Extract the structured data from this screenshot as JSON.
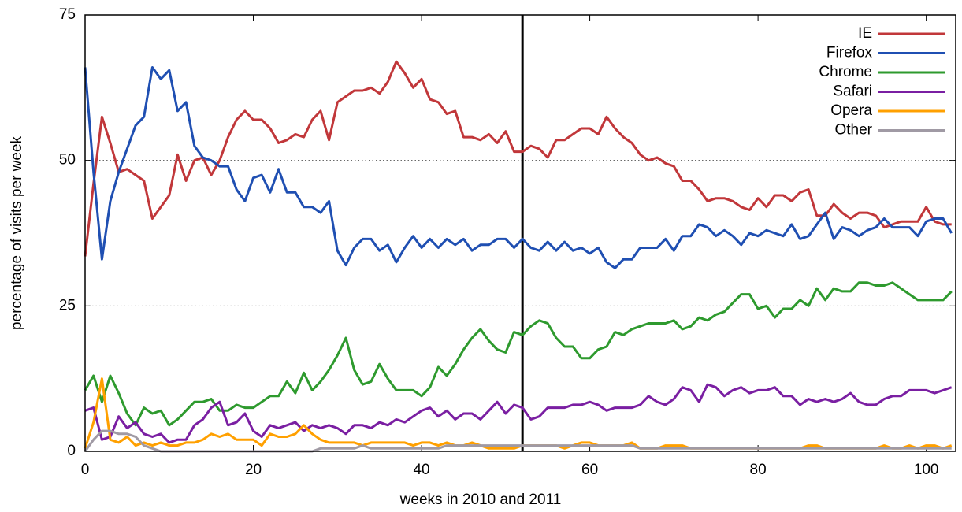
{
  "chart_data": {
    "type": "line",
    "xlabel": "weeks in 2010 and 2011",
    "ylabel": "percentage of visits per week",
    "xlim": [
      0,
      103.5
    ],
    "ylim": [
      0,
      75
    ],
    "xticks": [
      0,
      20,
      40,
      60,
      80,
      100
    ],
    "yticks": [
      0,
      25,
      50,
      75
    ],
    "grid": true,
    "legend": "top-right",
    "vline": 52,
    "x": [
      0,
      1,
      2,
      3,
      4,
      5,
      6,
      7,
      8,
      9,
      10,
      11,
      12,
      13,
      14,
      15,
      16,
      17,
      18,
      19,
      20,
      21,
      22,
      23,
      24,
      25,
      26,
      27,
      28,
      29,
      30,
      31,
      32,
      33,
      34,
      35,
      36,
      37,
      38,
      39,
      40,
      41,
      42,
      43,
      44,
      45,
      46,
      47,
      48,
      49,
      50,
      51,
      52,
      53,
      54,
      55,
      56,
      57,
      58,
      59,
      60,
      61,
      62,
      63,
      64,
      65,
      66,
      67,
      68,
      69,
      70,
      71,
      72,
      73,
      74,
      75,
      76,
      77,
      78,
      79,
      80,
      81,
      82,
      83,
      84,
      85,
      86,
      87,
      88,
      89,
      90,
      91,
      92,
      93,
      94,
      95,
      96,
      97,
      98,
      99,
      100,
      101,
      102,
      103
    ],
    "series": [
      {
        "name": "IE",
        "color": "#c1373a",
        "values": [
          33.5,
          46,
          57.5,
          53,
          48,
          48.5,
          47.5,
          46.5,
          40,
          42,
          44,
          51,
          46.5,
          50,
          50.5,
          47.5,
          50,
          54,
          57,
          58.5,
          57,
          57,
          55.5,
          53,
          53.5,
          54.5,
          54,
          57,
          58.5,
          53.5,
          60,
          61,
          62,
          62,
          62.5,
          61.5,
          63.5,
          67,
          65,
          62.5,
          64,
          60.5,
          60,
          58,
          58.5,
          54,
          54,
          53.5,
          54.5,
          53,
          55,
          51.5,
          51.5,
          52.5,
          52,
          50.5,
          53.5,
          53.5,
          54.5,
          55.5,
          55.5,
          54.5,
          57.5,
          55.5,
          54,
          53,
          51,
          50,
          50.5,
          49.5,
          49,
          46.5,
          46.5,
          45,
          43,
          43.5,
          43.5,
          43,
          42,
          41.5,
          43.5,
          42,
          44,
          44,
          43,
          44.5,
          45,
          40.5,
          40.5,
          42.5,
          41,
          40,
          41,
          41,
          40.5,
          38.5,
          39,
          39.5,
          39.5,
          39.5,
          42,
          39.5,
          39,
          39
        ]
      },
      {
        "name": "Firefox",
        "color": "#1f4fb2",
        "values": [
          66,
          48,
          33,
          43,
          48,
          52,
          56,
          57.5,
          66,
          64,
          65.5,
          58.5,
          60,
          52.5,
          50.5,
          50,
          49,
          49,
          45,
          43,
          47,
          47.5,
          44.5,
          48.5,
          44.5,
          44.5,
          42,
          42,
          41,
          43,
          34.5,
          32,
          35,
          36.5,
          36.5,
          34.5,
          35.5,
          32.5,
          35,
          37,
          35,
          36.5,
          35,
          36.5,
          35.5,
          36.5,
          34.5,
          35.5,
          35.5,
          36.5,
          36.5,
          35,
          36.5,
          35,
          34.5,
          36,
          34.5,
          36,
          34.5,
          35,
          34,
          35,
          32.5,
          31.5,
          33,
          33,
          35,
          35,
          35,
          36.5,
          34.5,
          37,
          37,
          39,
          38.5,
          37,
          38,
          37,
          35.5,
          37.5,
          37,
          38,
          37.5,
          37,
          39,
          36.5,
          37,
          39,
          41,
          36.5,
          38.5,
          38,
          37,
          38,
          38.5,
          40,
          38.5,
          38.5,
          38.5,
          37,
          39.5,
          40,
          40,
          37.5
        ]
      },
      {
        "name": "Chrome",
        "color": "#2e9a2e",
        "values": [
          10.5,
          13,
          8.5,
          13,
          10,
          6.5,
          4.5,
          7.5,
          6.5,
          7,
          4.5,
          5.5,
          7,
          8.5,
          8.5,
          9,
          7,
          7,
          8,
          7.5,
          7.5,
          8.5,
          9.5,
          9.5,
          12,
          10,
          13.5,
          10.5,
          12,
          14,
          16.5,
          19.5,
          14,
          11.5,
          12,
          15,
          12.5,
          10.5,
          10.5,
          10.5,
          9.5,
          11,
          14.5,
          13,
          15,
          17.5,
          19.5,
          21,
          19,
          17.5,
          17,
          20.5,
          20,
          21.5,
          22.5,
          22,
          19.5,
          18,
          18,
          16,
          16,
          17.5,
          18,
          20.5,
          20,
          21,
          21.5,
          22,
          22,
          22,
          22.5,
          21,
          21.5,
          23,
          22.5,
          23.5,
          24,
          25.5,
          27,
          27,
          24.5,
          25,
          23,
          24.5,
          24.5,
          26,
          25,
          28,
          26,
          28,
          27.5,
          27.5,
          29,
          29,
          28.5,
          28.5,
          29,
          28,
          27,
          26,
          26,
          26,
          26,
          27.5
        ]
      },
      {
        "name": "Safari",
        "color": "#7a1fa2",
        "values": [
          7,
          7.5,
          2,
          2.5,
          6,
          4,
          5,
          3,
          2.5,
          3,
          1.5,
          2,
          2,
          4.5,
          5.5,
          7.5,
          8.5,
          4.5,
          5,
          6.5,
          3.5,
          2.5,
          4.5,
          4,
          4.5,
          5,
          3.5,
          4.5,
          4,
          4.5,
          4,
          3,
          4.5,
          4.5,
          4,
          5,
          4.5,
          5.5,
          5,
          6,
          7,
          7.5,
          6,
          7,
          5.5,
          6.5,
          6.5,
          5.5,
          7,
          8.5,
          6.5,
          8,
          7.5,
          5.5,
          6,
          7.5,
          7.5,
          7.5,
          8,
          8,
          8.5,
          8,
          7,
          7.5,
          7.5,
          7.5,
          8,
          9.5,
          8.5,
          8,
          9,
          11,
          10.5,
          8.5,
          11.5,
          11,
          9.5,
          10.5,
          11,
          10,
          10.5,
          10.5,
          11,
          9.5,
          9.5,
          8,
          9,
          8.5,
          9,
          8.5,
          9,
          10,
          8.5,
          8,
          8,
          9,
          9.5,
          9.5,
          10.5,
          10.5,
          10.5,
          10,
          10.5,
          11
        ]
      },
      {
        "name": "Opera",
        "color": "#ffa000",
        "values": [
          0.5,
          5,
          12.5,
          2,
          1.5,
          2.5,
          1,
          1.5,
          1,
          1.5,
          1,
          1,
          1.5,
          1.5,
          2,
          3,
          2.5,
          3,
          2,
          2,
          2,
          1,
          3,
          2.5,
          2.5,
          3,
          4.5,
          3,
          2,
          1.5,
          1.5,
          1.5,
          1.5,
          1,
          1.5,
          1.5,
          1.5,
          1.5,
          1.5,
          1,
          1.5,
          1.5,
          1,
          1.5,
          1,
          1,
          1.5,
          1,
          0.5,
          0.5,
          0.5,
          0.5,
          1,
          1,
          1,
          1,
          1,
          0.5,
          1,
          1.5,
          1.5,
          1,
          1,
          1,
          1,
          1.5,
          0.5,
          0.5,
          0.5,
          1,
          1,
          1,
          0.5,
          0.5,
          0.5,
          0.5,
          0.5,
          0.5,
          0.5,
          0.5,
          0.5,
          0.5,
          0.5,
          0.5,
          0.5,
          0.5,
          1,
          1,
          0.5,
          0.5,
          0.5,
          0.5,
          0.5,
          0.5,
          0.5,
          1,
          0.5,
          0.5,
          1,
          0.5,
          1,
          1,
          0.5,
          1
        ]
      },
      {
        "name": "Other",
        "color": "#a09aa4",
        "values": [
          0,
          2,
          3.5,
          3.5,
          3,
          3,
          2.5,
          1,
          0.5,
          0,
          0,
          0,
          0,
          0,
          0,
          0,
          0,
          0,
          0,
          0,
          0,
          0,
          0,
          0,
          0,
          0,
          0,
          0,
          0.5,
          0.5,
          0.5,
          0.5,
          0.5,
          1,
          0.5,
          0.5,
          0.5,
          0.5,
          0.5,
          0.5,
          0.5,
          0.5,
          0.5,
          1,
          1,
          1,
          1,
          1,
          1,
          1,
          1,
          1,
          1,
          1,
          1,
          1,
          1,
          1,
          1,
          1,
          1,
          1,
          1,
          1,
          1,
          1,
          0.5,
          0.5,
          0.5,
          0.5,
          0.5,
          0.5,
          0.5,
          0.5,
          0.5,
          0.5,
          0.5,
          0.5,
          0.5,
          0.5,
          0.5,
          0.5,
          0.5,
          0.5,
          0.5,
          0.5,
          0.5,
          0.5,
          0.5,
          0.5,
          0.5,
          0.5,
          0.5,
          0.5,
          0.5,
          0.5,
          0.5,
          0.5,
          0.5,
          0.5,
          0.5,
          0.5,
          0.5,
          0.5
        ]
      }
    ]
  }
}
